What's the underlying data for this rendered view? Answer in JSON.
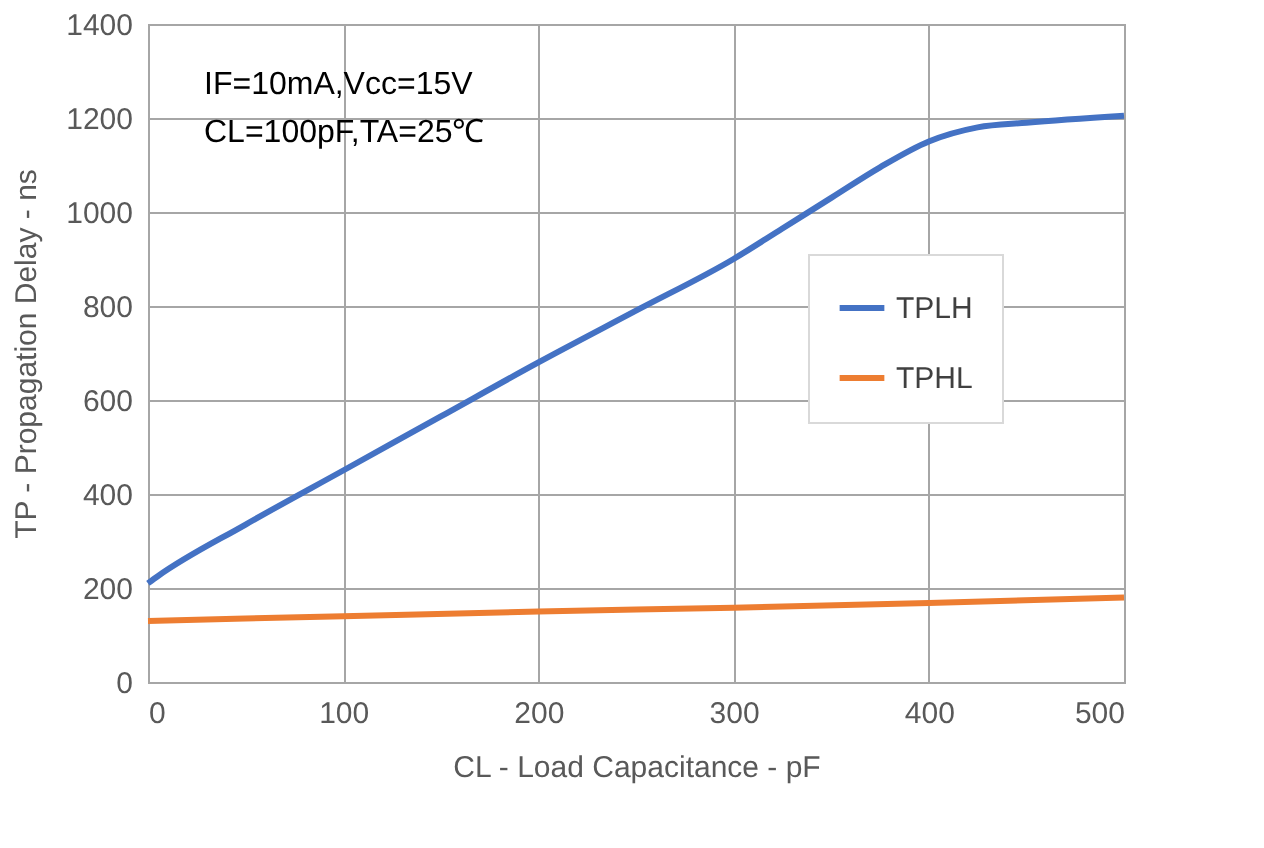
{
  "chart_data": {
    "type": "line",
    "xlabel": "CL - Load Capacitance - pF",
    "ylabel": "TP - Propagation Delay - ns",
    "series": [
      {
        "name": "TPLH",
        "color": "#4472c4",
        "x": [
          0,
          5,
          50,
          100,
          150,
          200,
          250,
          300,
          325,
          350,
          375,
          400,
          425,
          450,
          500
        ],
        "values": [
          210,
          225,
          335,
          450,
          565,
          680,
          790,
          900,
          965,
          1030,
          1095,
          1150,
          1180,
          1190,
          1205
        ]
      },
      {
        "name": "TPHL",
        "color": "#ed7d31",
        "x": [
          0,
          100,
          200,
          300,
          400,
          500
        ],
        "values": [
          130,
          140,
          150,
          158,
          168,
          180
        ]
      }
    ],
    "xlim": [
      0,
      500
    ],
    "xticks": [
      0,
      100,
      200,
      300,
      400,
      500
    ],
    "ylim": [
      0,
      1400
    ],
    "yticks": [
      0,
      200,
      400,
      600,
      800,
      1000,
      1200,
      1400
    ],
    "grid": true,
    "legend": "right",
    "line_style": "solid",
    "marker": "none",
    "annotations": [
      "IF=10mA,Vcc=15V",
      "CL=100pF,TA=25℃"
    ]
  }
}
